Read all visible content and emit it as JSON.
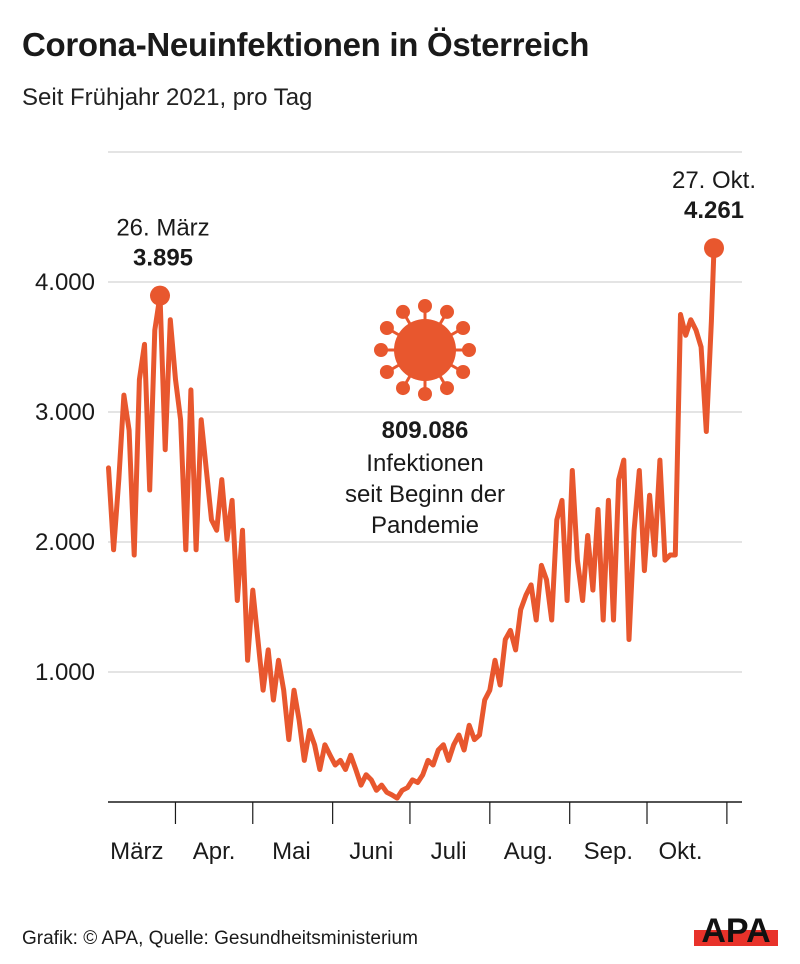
{
  "header": {
    "title": "Corona-Neuinfektionen in Österreich",
    "subtitle": "Seit Frühjahr 2021, pro Tag"
  },
  "footer": {
    "credit": "Grafik: © APA, Quelle: Gesundheitsministerium",
    "logo_text": "APA"
  },
  "colors": {
    "line": "#e8572e",
    "grid": "#dcdcdc",
    "axis": "#1a1a1a",
    "logo_bar": "#e8322a"
  },
  "center_note": {
    "icon": "virus-icon",
    "total": "809.086",
    "line1": "Infektionen",
    "line2": "seit Beginn der",
    "line3": "Pandemie"
  },
  "chart_data": {
    "type": "line",
    "title": "Corona-Neuinfektionen in Österreich",
    "subtitle": "Seit Frühjahr 2021, pro Tag",
    "xlabel": "",
    "ylabel": "",
    "xlim": [
      "2021-03-06",
      "2021-10-31"
    ],
    "ylim": [
      0,
      5000
    ],
    "grid": true,
    "y_ticks": [
      {
        "value": 1000,
        "label": "1.000"
      },
      {
        "value": 2000,
        "label": "2.000"
      },
      {
        "value": 3000,
        "label": "3.000"
      },
      {
        "value": 4000,
        "label": "4.000"
      },
      {
        "value": 5000,
        "label": ""
      }
    ],
    "x_ticks": [
      "2021-04-01",
      "2021-05-01",
      "2021-06-01",
      "2021-07-01",
      "2021-08-01",
      "2021-09-01",
      "2021-10-01",
      "2021-11-01"
    ],
    "x_labels": [
      {
        "label": "März",
        "date": "2021-03-17"
      },
      {
        "label": "Apr.",
        "date": "2021-04-16"
      },
      {
        "label": "Mai",
        "date": "2021-05-16"
      },
      {
        "label": "Juni",
        "date": "2021-06-16"
      },
      {
        "label": "Juli",
        "date": "2021-07-16"
      },
      {
        "label": "Aug.",
        "date": "2021-08-16"
      },
      {
        "label": "Sep.",
        "date": "2021-09-16"
      },
      {
        "label": "Okt.",
        "date": "2021-10-14"
      }
    ],
    "annotations": [
      {
        "date": "2021-03-26",
        "value": 3895,
        "date_label": "26. März",
        "value_label": "3.895"
      },
      {
        "date": "2021-10-27",
        "value": 4261,
        "date_label": "27. Okt.",
        "value_label": "4.261"
      }
    ],
    "points": [
      [
        "2021-03-06",
        2570
      ],
      [
        "2021-03-08",
        1940
      ],
      [
        "2021-03-10",
        2480
      ],
      [
        "2021-03-12",
        3130
      ],
      [
        "2021-03-14",
        2860
      ],
      [
        "2021-03-16",
        1900
      ],
      [
        "2021-03-18",
        3250
      ],
      [
        "2021-03-20",
        3520
      ],
      [
        "2021-03-22",
        2400
      ],
      [
        "2021-03-24",
        3630
      ],
      [
        "2021-03-26",
        3895
      ],
      [
        "2021-03-28",
        2710
      ],
      [
        "2021-03-30",
        3710
      ],
      [
        "2021-04-01",
        3250
      ],
      [
        "2021-04-03",
        2940
      ],
      [
        "2021-04-05",
        1940
      ],
      [
        "2021-04-07",
        3170
      ],
      [
        "2021-04-09",
        1940
      ],
      [
        "2021-04-11",
        2940
      ],
      [
        "2021-04-13",
        2550
      ],
      [
        "2021-04-15",
        2170
      ],
      [
        "2021-04-17",
        2090
      ],
      [
        "2021-04-19",
        2480
      ],
      [
        "2021-04-21",
        2020
      ],
      [
        "2021-04-23",
        2320
      ],
      [
        "2021-04-25",
        1550
      ],
      [
        "2021-04-27",
        2090
      ],
      [
        "2021-04-29",
        1090
      ],
      [
        "2021-05-01",
        1630
      ],
      [
        "2021-05-03",
        1250
      ],
      [
        "2021-05-05",
        860
      ],
      [
        "2021-05-07",
        1170
      ],
      [
        "2021-05-09",
        785
      ],
      [
        "2021-05-11",
        1090
      ],
      [
        "2021-05-13",
        860
      ],
      [
        "2021-05-15",
        480
      ],
      [
        "2021-05-17",
        860
      ],
      [
        "2021-05-19",
        630
      ],
      [
        "2021-05-21",
        320
      ],
      [
        "2021-05-23",
        550
      ],
      [
        "2021-05-25",
        440
      ],
      [
        "2021-05-27",
        250
      ],
      [
        "2021-05-29",
        440
      ],
      [
        "2021-05-31",
        360
      ],
      [
        "2021-06-02",
        285
      ],
      [
        "2021-06-04",
        320
      ],
      [
        "2021-06-06",
        250
      ],
      [
        "2021-06-08",
        360
      ],
      [
        "2021-06-10",
        250
      ],
      [
        "2021-06-12",
        130
      ],
      [
        "2021-06-14",
        210
      ],
      [
        "2021-06-16",
        170
      ],
      [
        "2021-06-18",
        90
      ],
      [
        "2021-06-20",
        130
      ],
      [
        "2021-06-22",
        75
      ],
      [
        "2021-06-24",
        55
      ],
      [
        "2021-06-26",
        30
      ],
      [
        "2021-06-28",
        90
      ],
      [
        "2021-06-30",
        110
      ],
      [
        "2021-07-02",
        170
      ],
      [
        "2021-07-04",
        150
      ],
      [
        "2021-07-06",
        210
      ],
      [
        "2021-07-08",
        320
      ],
      [
        "2021-07-10",
        285
      ],
      [
        "2021-07-12",
        400
      ],
      [
        "2021-07-14",
        440
      ],
      [
        "2021-07-16",
        320
      ],
      [
        "2021-07-18",
        440
      ],
      [
        "2021-07-20",
        515
      ],
      [
        "2021-07-22",
        400
      ],
      [
        "2021-07-24",
        590
      ],
      [
        "2021-07-26",
        480
      ],
      [
        "2021-07-28",
        515
      ],
      [
        "2021-07-30",
        785
      ],
      [
        "2021-08-01",
        860
      ],
      [
        "2021-08-03",
        1090
      ],
      [
        "2021-08-05",
        900
      ],
      [
        "2021-08-07",
        1250
      ],
      [
        "2021-08-09",
        1320
      ],
      [
        "2021-08-11",
        1170
      ],
      [
        "2021-08-13",
        1480
      ],
      [
        "2021-08-15",
        1590
      ],
      [
        "2021-08-17",
        1670
      ],
      [
        "2021-08-19",
        1400
      ],
      [
        "2021-08-21",
        1820
      ],
      [
        "2021-08-23",
        1710
      ],
      [
        "2021-08-25",
        1400
      ],
      [
        "2021-08-27",
        2170
      ],
      [
        "2021-08-29",
        2320
      ],
      [
        "2021-08-31",
        1550
      ],
      [
        "2021-09-02",
        2550
      ],
      [
        "2021-09-04",
        1860
      ],
      [
        "2021-09-06",
        1550
      ],
      [
        "2021-09-08",
        2050
      ],
      [
        "2021-09-10",
        1630
      ],
      [
        "2021-09-12",
        2250
      ],
      [
        "2021-09-14",
        1400
      ],
      [
        "2021-09-16",
        2320
      ],
      [
        "2021-09-18",
        1400
      ],
      [
        "2021-09-20",
        2480
      ],
      [
        "2021-09-22",
        2630
      ],
      [
        "2021-09-24",
        1250
      ],
      [
        "2021-09-26",
        2090
      ],
      [
        "2021-09-28",
        2550
      ],
      [
        "2021-09-30",
        1780
      ],
      [
        "2021-10-02",
        2360
      ],
      [
        "2021-10-04",
        1900
      ],
      [
        "2021-10-06",
        2630
      ],
      [
        "2021-10-08",
        1860
      ],
      [
        "2021-10-10",
        1900
      ],
      [
        "2021-10-12",
        1900
      ],
      [
        "2021-10-14",
        3750
      ],
      [
        "2021-10-16",
        3590
      ],
      [
        "2021-10-18",
        3710
      ],
      [
        "2021-10-20",
        3630
      ],
      [
        "2021-10-22",
        3500
      ],
      [
        "2021-10-24",
        2850
      ],
      [
        "2021-10-26",
        3700
      ],
      [
        "2021-10-27",
        4261
      ]
    ]
  }
}
